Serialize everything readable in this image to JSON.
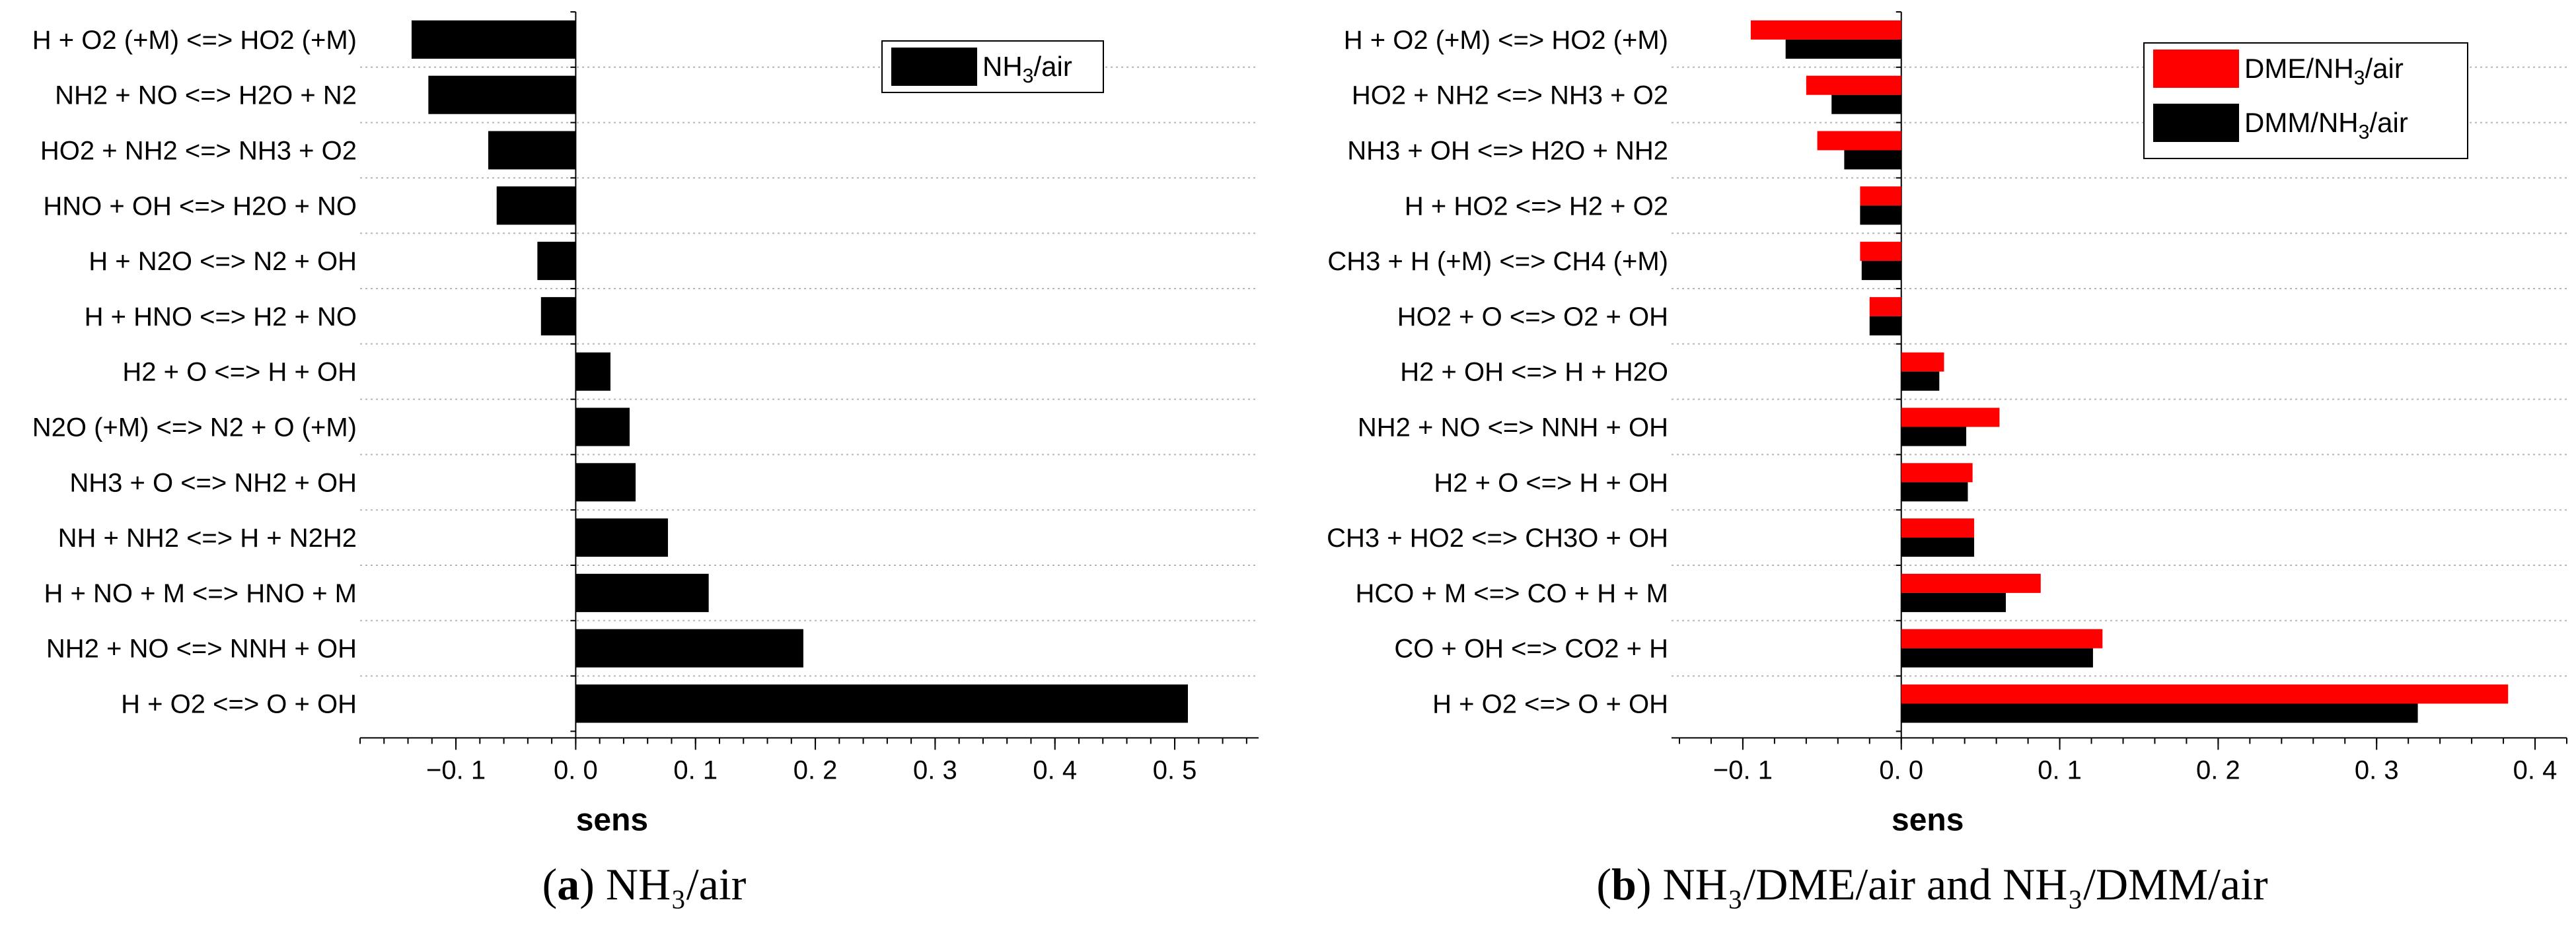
{
  "chart_data": [
    {
      "type": "bar",
      "orientation": "horizontal",
      "xlabel": "sens",
      "xlim": [
        -0.18,
        0.57
      ],
      "xticks": [
        -0.1,
        0.0,
        0.1,
        0.2,
        0.3,
        0.4,
        0.5
      ],
      "xtick_labels": [
        "−0. 1",
        "0. 0",
        "0. 1",
        "0. 2",
        "0. 3",
        "0. 4",
        "0. 5"
      ],
      "grid": "horizontal dotted",
      "legend": "top-right",
      "categories": [
        "H + O2 (+M) <=> HO2 (+M)",
        "NH2 + NO <=> H2O + N2",
        "HO2 + NH2 <=> NH3 + O2",
        "HNO + OH <=> H2O + NO",
        "H + N2O <=> N2 + OH",
        "H + HNO <=> H2 + NO",
        "H2 + O <=> H + OH",
        "N2O (+M) <=> N2 + O (+M)",
        "NH3 + O <=> NH2 + OH",
        "NH + NH2 <=> H + N2H2",
        "H + NO + M <=> HNO + M",
        "NH2 + NO <=> NNH + OH",
        "H + O2 <=> O + OH"
      ],
      "series": [
        {
          "name": "NH3/air",
          "name_main": "NH",
          "name_sub": "3",
          "name_tail": "/air",
          "color": "#000000",
          "values": [
            -0.137,
            -0.123,
            -0.073,
            -0.066,
            -0.032,
            -0.029,
            0.029,
            0.045,
            0.05,
            0.077,
            0.111,
            0.19,
            0.511
          ]
        }
      ],
      "caption": {
        "label": "a",
        "open": "(",
        "close": ")",
        "text": " NH₃/air"
      }
    },
    {
      "type": "bar",
      "orientation": "horizontal",
      "xlabel": "sens",
      "xlim": [
        -0.145,
        0.42
      ],
      "xticks": [
        -0.1,
        0.0,
        0.1,
        0.2,
        0.3,
        0.4
      ],
      "xtick_labels": [
        "−0. 1",
        "0. 0",
        "0. 1",
        "0. 2",
        "0. 3",
        "0. 4"
      ],
      "grid": "horizontal dotted",
      "legend": "top-right",
      "categories": [
        "H + O2 (+M) <=> HO2 (+M)",
        "HO2 + NH2 <=> NH3 + O2",
        "NH3 + OH <=> H2O + NH2",
        "H + HO2 <=> H2 + O2",
        "CH3 + H (+M) <=> CH4 (+M)",
        "HO2 + O <=> O2 + OH",
        "H2 + OH <=> H + H2O",
        "NH2 + NO <=> NNH + OH",
        "H2 + O <=> H + OH",
        "CH3 + HO2 <=> CH3O + OH",
        "HCO + M <=> CO + H + M",
        "CO + OH <=> CO2 + H",
        "H + O2 <=> O + OH"
      ],
      "series": [
        {
          "name": "DME/NH3/air",
          "name_main": "DME/NH",
          "name_sub": "3",
          "name_tail": "/air",
          "color": "#ff0000",
          "values": [
            -0.095,
            -0.06,
            -0.053,
            -0.026,
            -0.026,
            -0.02,
            0.027,
            0.062,
            0.045,
            0.046,
            0.088,
            0.127,
            0.383
          ]
        },
        {
          "name": "DMM/NH3/air",
          "name_main": "DMM/NH",
          "name_sub": "3",
          "name_tail": "/air",
          "color": "#000000",
          "values": [
            -0.073,
            -0.044,
            -0.036,
            -0.026,
            -0.025,
            -0.02,
            0.024,
            0.041,
            0.042,
            0.046,
            0.066,
            0.121,
            0.326
          ]
        }
      ],
      "caption": {
        "label": "b",
        "open": "(",
        "close": ")",
        "text": " NH₃/DME/air and NH₃/DMM/air"
      }
    }
  ]
}
